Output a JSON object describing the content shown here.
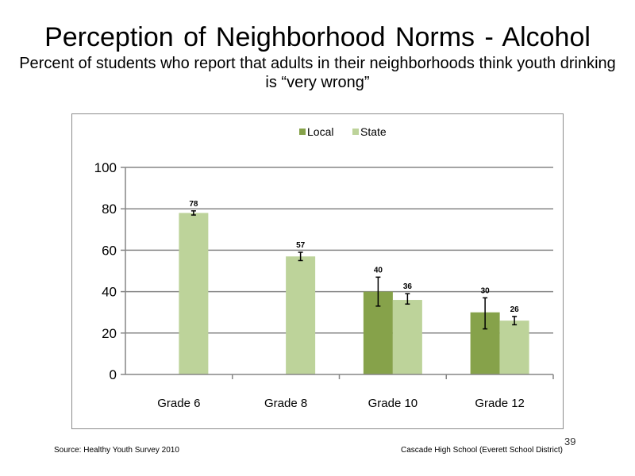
{
  "header": {
    "title": "Perception of Neighborhood  Norms - Alcohol",
    "subtitle": "Percent of students who report that adults in their neighborhoods think youth drinking  is “very wrong”"
  },
  "footer": {
    "source": "Source: Healthy Youth Survey 2010",
    "school": "Cascade High School (Everett School District)",
    "page_number": "39"
  },
  "colors": {
    "local": "#86a24a",
    "state": "#bdd39a",
    "grid": "#868686",
    "error_bar": "#000000"
  },
  "chart_data": {
    "type": "bar",
    "categories": [
      "Grade 6",
      "Grade 8",
      "Grade 10",
      "Grade 12"
    ],
    "series": [
      {
        "name": "Local",
        "values": [
          null,
          null,
          40,
          30
        ],
        "labels": [
          "",
          "",
          "40",
          "30"
        ],
        "error_low": [
          null,
          null,
          33,
          22
        ],
        "error_high": [
          null,
          null,
          47,
          37
        ]
      },
      {
        "name": "State",
        "values": [
          78,
          57,
          36,
          26
        ],
        "labels": [
          "78",
          "57",
          "36",
          "26"
        ],
        "error_low": [
          77,
          55,
          34,
          24
        ],
        "error_high": [
          79,
          59,
          39,
          28
        ]
      }
    ],
    "title": "",
    "xlabel": "",
    "ylabel": "",
    "ylim": [
      0,
      100
    ],
    "yticks": [
      "0",
      "20",
      "40",
      "60",
      "80",
      "100"
    ],
    "grid": true,
    "legend_position": "top-center"
  }
}
